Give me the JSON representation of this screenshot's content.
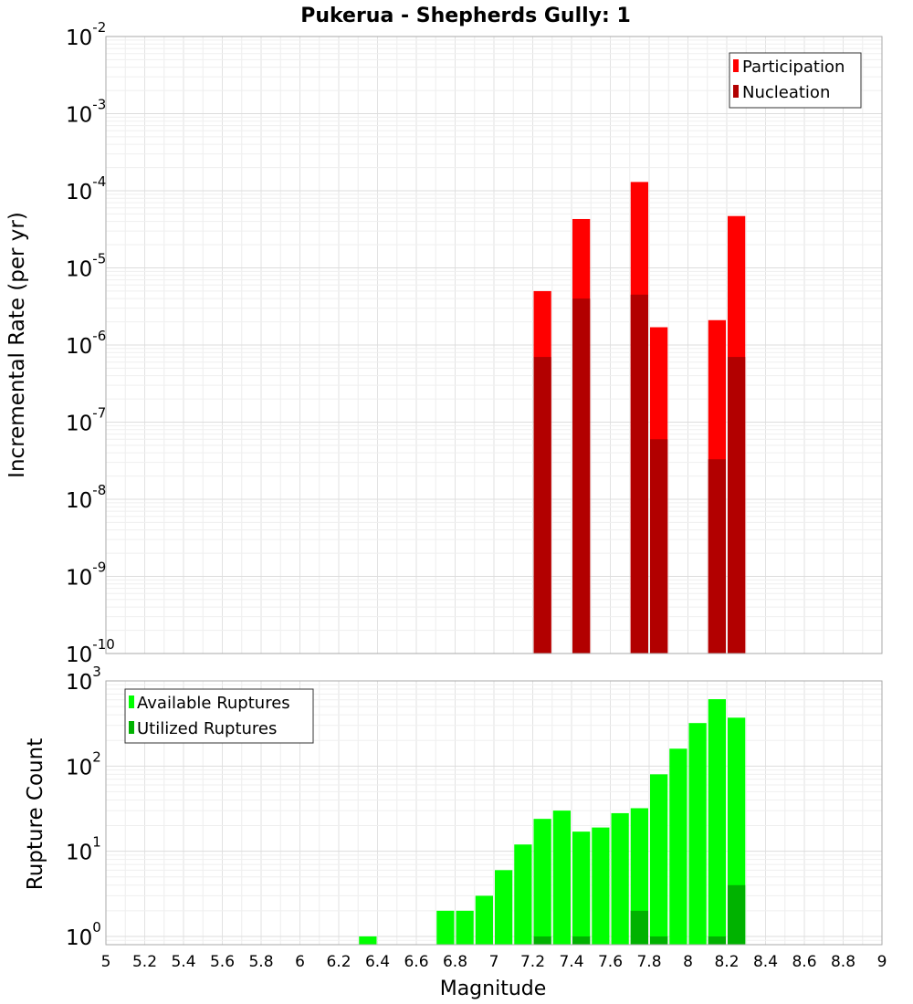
{
  "chart_data": [
    {
      "type": "bar",
      "title": "Pukerua - Shepherds Gully: 1",
      "xlabel": "Magnitude",
      "ylabel": "Incremental Rate (per yr)",
      "yscale": "log",
      "xlim": [
        5,
        9
      ],
      "ylim": [
        1e-10,
        0.01
      ],
      "grid": true,
      "legend_position": "top-right",
      "bin_width": 0.1,
      "series": [
        {
          "name": "Participation",
          "color": "#ff0000",
          "x": [
            7.25,
            7.45,
            7.75,
            7.85,
            8.15,
            8.25
          ],
          "values": [
            5e-06,
            4.3e-05,
            0.00013,
            1.7e-06,
            2.1e-06,
            4.7e-05
          ]
        },
        {
          "name": "Nucleation",
          "color": "#b20000",
          "x": [
            7.25,
            7.45,
            7.75,
            7.85,
            8.15,
            8.25
          ],
          "values": [
            7e-07,
            4e-06,
            4.5e-06,
            6e-08,
            3.3e-08,
            7e-07
          ]
        }
      ]
    },
    {
      "type": "bar",
      "xlabel": "Magnitude",
      "ylabel": "Rupture Count",
      "yscale": "log",
      "xlim": [
        5,
        9
      ],
      "ylim": [
        0.8,
        1000
      ],
      "grid": true,
      "legend_position": "top-left",
      "bin_width": 0.1,
      "x_ticks": [
        "5",
        "5.2",
        "5.4",
        "5.6",
        "5.8",
        "6",
        "6.2",
        "6.4",
        "6.6",
        "6.8",
        "7",
        "7.2",
        "7.4",
        "7.6",
        "7.8",
        "8",
        "8.2",
        "8.4",
        "8.6",
        "8.8",
        "9"
      ],
      "series": [
        {
          "name": "Available Ruptures",
          "color": "#00ff00",
          "x": [
            6.35,
            6.75,
            6.85,
            6.95,
            7.05,
            7.15,
            7.25,
            7.35,
            7.45,
            7.55,
            7.65,
            7.75,
            7.85,
            7.95,
            8.05,
            8.15,
            8.25
          ],
          "values": [
            1,
            2,
            2,
            3,
            6,
            12,
            24,
            30,
            17,
            19,
            28,
            32,
            80,
            160,
            320,
            610,
            370
          ]
        },
        {
          "name": "Utilized Ruptures",
          "color": "#00b200",
          "x": [
            7.25,
            7.45,
            7.75,
            7.85,
            8.15,
            8.25
          ],
          "values": [
            1,
            1,
            2,
            1,
            1,
            4
          ]
        }
      ]
    }
  ]
}
